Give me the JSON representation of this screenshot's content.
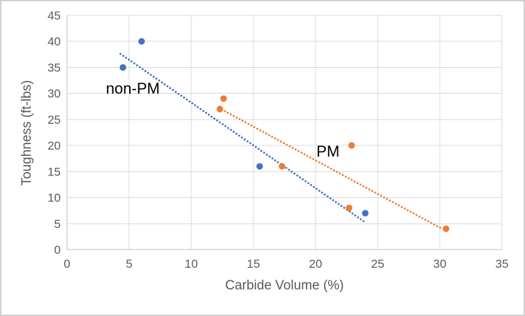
{
  "chart_data": {
    "type": "scatter",
    "title": "",
    "xlabel": "Carbide Volume (%)",
    "ylabel": "Toughness (ft-lbs)",
    "xlim": [
      0,
      35
    ],
    "ylim": [
      0,
      45
    ],
    "x_ticks": [
      0,
      5,
      10,
      15,
      20,
      25,
      30,
      35
    ],
    "y_ticks": [
      0,
      5,
      10,
      15,
      20,
      25,
      30,
      35,
      40,
      45
    ],
    "grid": true,
    "legend_position": "none",
    "series": [
      {
        "name": "non-PM",
        "color": "#4472C4",
        "marker": "circle",
        "points": [
          [
            4.5,
            35
          ],
          [
            6,
            40
          ],
          [
            15.5,
            16
          ],
          [
            24,
            7
          ]
        ],
        "trendline": {
          "style": "dotted",
          "from": [
            4.3,
            37.6
          ],
          "to": [
            23.9,
            5.4
          ]
        }
      },
      {
        "name": "PM",
        "color": "#ED7D31",
        "marker": "circle",
        "points": [
          [
            12.3,
            27
          ],
          [
            12.6,
            29
          ],
          [
            17.3,
            16
          ],
          [
            22.7,
            8
          ],
          [
            22.9,
            20
          ],
          [
            30.5,
            4
          ]
        ],
        "trendline": {
          "style": "dotted",
          "from": [
            12.7,
            26.6
          ],
          "to": [
            30.1,
            4.1
          ]
        }
      }
    ],
    "annotations": [
      {
        "text": "non-PM",
        "x": 5.3,
        "y": 30.9,
        "color": "#000000"
      },
      {
        "text": "PM",
        "x": 21.0,
        "y": 18.8,
        "color": "#000000"
      }
    ],
    "colors": {
      "gridline": "#D9D9D9",
      "axis_line": "#BFBFBF",
      "tick_text": "#595959",
      "axis_title_text": "#595959",
      "frame_border": "#CFCFCF",
      "background": "#FFFFFF"
    }
  }
}
